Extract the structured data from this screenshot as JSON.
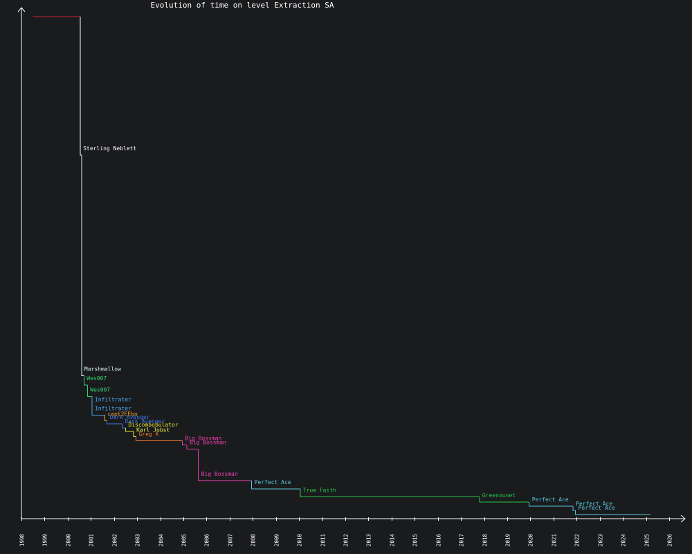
{
  "chart_data": {
    "type": "line",
    "title": "Evolution of time on level Extraction SA",
    "xlabel": "",
    "ylabel": "",
    "xlim": [
      1998,
      2026.6
    ],
    "ylim": [
      0,
      1
    ],
    "x_ticks": [
      "1998",
      "1999",
      "2000",
      "2001",
      "2002",
      "2003",
      "2004",
      "2005",
      "2006",
      "2007",
      "2008",
      "2009",
      "2010",
      "2011",
      "2012",
      "2013",
      "2014",
      "2015",
      "2016",
      "2017",
      "2018",
      "2019",
      "2020",
      "2021",
      "2022",
      "2023",
      "2024",
      "2025",
      "2026"
    ],
    "grid": false,
    "y_tick_labels_visible": false,
    "start_value": 0.973,
    "start_x": 1998.5,
    "end_x": 2025.2,
    "colors": {
      "axis": "#ffffff",
      "background": "#1a1b1d",
      "initial": "#cc1f2e"
    },
    "records": [
      {
        "name": "Sterling Neblett",
        "x": 2000.55,
        "value": 0.705,
        "color": "#ffffff"
      },
      {
        "name": "Marshmallow",
        "x": 2000.6,
        "value": 0.277,
        "color": "#d4f4ec"
      },
      {
        "name": "Wes007",
        "x": 2000.7,
        "value": 0.259,
        "color": "#2dd46b"
      },
      {
        "name": "Wes007",
        "x": 2000.85,
        "value": 0.237,
        "color": "#2dd46b"
      },
      {
        "name": "Infiltrater",
        "x": 2001.05,
        "value": 0.218,
        "color": "#45a8f0"
      },
      {
        "name": "Infiltrater",
        "x": 2001.05,
        "value": 0.201,
        "color": "#45a8f0"
      },
      {
        "name": "capt2EEbo",
        "x": 2001.6,
        "value": 0.19,
        "color": "#f0a030"
      },
      {
        "name": "Dark Avenger",
        "x": 2001.7,
        "value": 0.184,
        "color": "#3a78e8"
      },
      {
        "name": "Dark Avenger",
        "x": 2002.35,
        "value": 0.176,
        "color": "#3a78e8"
      },
      {
        "name": "Discombobulator",
        "x": 2002.5,
        "value": 0.169,
        "color": "#e0e030"
      },
      {
        "name": "Karl Jobst",
        "x": 2002.85,
        "value": 0.159,
        "color": "#f0f040"
      },
      {
        "name": "Greg K",
        "x": 2002.95,
        "value": 0.151,
        "color": "#f07830"
      },
      {
        "name": "Big Bossman",
        "x": 2004.95,
        "value": 0.143,
        "color": "#f040b0"
      },
      {
        "name": "Big Bossman",
        "x": 2005.15,
        "value": 0.135,
        "color": "#f040b0"
      },
      {
        "name": "Big Bossman",
        "x": 2005.65,
        "value": 0.074,
        "color": "#f040b0"
      },
      {
        "name": "Perfect Ace",
        "x": 2007.95,
        "value": 0.058,
        "color": "#58c8e0"
      },
      {
        "name": "True Faith",
        "x": 2010.05,
        "value": 0.042,
        "color": "#28c848"
      },
      {
        "name": "Greenounet",
        "x": 2017.8,
        "value": 0.032,
        "color": "#28c848"
      },
      {
        "name": "Perfect Ace",
        "x": 2019.95,
        "value": 0.024,
        "color": "#58c8e0"
      },
      {
        "name": "Perfect Ace",
        "x": 2021.85,
        "value": 0.016,
        "color": "#58c8e0"
      },
      {
        "name": "Perfect Ace",
        "x": 2021.95,
        "value": 0.008,
        "color": "#58c8e0"
      }
    ]
  }
}
